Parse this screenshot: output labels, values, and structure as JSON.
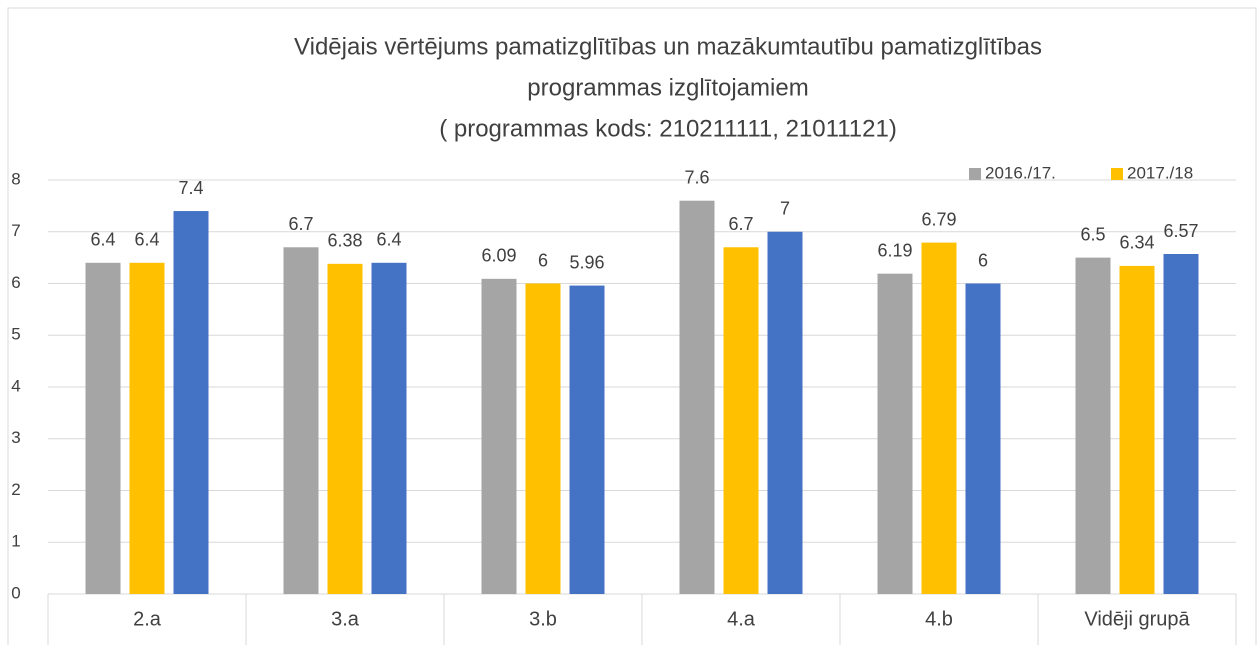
{
  "chart_data": {
    "type": "bar",
    "title": [
      "Vidējais vērtējums pamatizglītības un mazākumtautību pamatizglītības",
      "programmas izglītojamiem",
      "( programmas kods: 210211111, 21011121)"
    ],
    "categories": [
      "2.a",
      "3.a",
      "3.b",
      "4.a",
      "4.b",
      "Vidēji grupā"
    ],
    "series": [
      {
        "name": "2016./17.",
        "color": "#a5a5a5",
        "values": [
          6.4,
          6.7,
          6.09,
          7.6,
          6.19,
          6.5
        ]
      },
      {
        "name": "2017./18",
        "color": "#ffc000",
        "values": [
          6.4,
          6.38,
          6,
          6.7,
          6.79,
          6.34
        ]
      },
      {
        "color": "#4472c4",
        "values": [
          7.4,
          6.4,
          5.96,
          7,
          6,
          6.57
        ]
      }
    ],
    "ylim": [
      0,
      8
    ],
    "yticks": [
      0,
      1,
      2,
      3,
      4,
      5,
      6,
      7,
      8
    ],
    "grid": true,
    "legend": "top-right"
  }
}
